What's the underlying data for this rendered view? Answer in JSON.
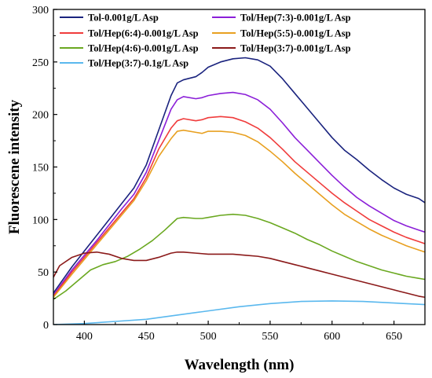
{
  "chart_data": {
    "type": "line",
    "xlabel": "Wavelength (nm)",
    "ylabel": "Fluorescene intensity",
    "xlim": [
      375,
      675
    ],
    "ylim": [
      0,
      300
    ],
    "xticks": [
      400,
      450,
      500,
      550,
      600,
      650
    ],
    "yticks": [
      0,
      50,
      100,
      150,
      200,
      250,
      300
    ],
    "grid": false,
    "legend_position": "top",
    "series": [
      {
        "name": "Tol-0.001g/L Asp",
        "color": "#1a237e",
        "points": [
          [
            375,
            30
          ],
          [
            390,
            55
          ],
          [
            400,
            70
          ],
          [
            410,
            85
          ],
          [
            420,
            100
          ],
          [
            430,
            115
          ],
          [
            440,
            130
          ],
          [
            450,
            152
          ],
          [
            460,
            185
          ],
          [
            470,
            218
          ],
          [
            475,
            230
          ],
          [
            480,
            233
          ],
          [
            490,
            236
          ],
          [
            495,
            240
          ],
          [
            500,
            245
          ],
          [
            510,
            250
          ],
          [
            520,
            253
          ],
          [
            530,
            254
          ],
          [
            540,
            252
          ],
          [
            550,
            246
          ],
          [
            560,
            234
          ],
          [
            570,
            220
          ],
          [
            580,
            206
          ],
          [
            590,
            192
          ],
          [
            600,
            178
          ],
          [
            610,
            166
          ],
          [
            620,
            157
          ],
          [
            630,
            147
          ],
          [
            640,
            138
          ],
          [
            650,
            130
          ],
          [
            660,
            124
          ],
          [
            670,
            120
          ],
          [
            675,
            116
          ]
        ]
      },
      {
        "name": "Tol/Hep(7:3)-0.001g/L Asp",
        "color": "#8b1fd8",
        "points": [
          [
            375,
            28
          ],
          [
            390,
            52
          ],
          [
            400,
            66
          ],
          [
            410,
            80
          ],
          [
            420,
            95
          ],
          [
            430,
            110
          ],
          [
            440,
            124
          ],
          [
            450,
            145
          ],
          [
            460,
            175
          ],
          [
            470,
            205
          ],
          [
            475,
            214
          ],
          [
            480,
            217
          ],
          [
            490,
            215
          ],
          [
            495,
            216
          ],
          [
            500,
            218
          ],
          [
            510,
            220
          ],
          [
            520,
            221
          ],
          [
            530,
            219
          ],
          [
            540,
            214
          ],
          [
            550,
            205
          ],
          [
            560,
            192
          ],
          [
            570,
            178
          ],
          [
            580,
            166
          ],
          [
            590,
            154
          ],
          [
            600,
            142
          ],
          [
            610,
            131
          ],
          [
            620,
            121
          ],
          [
            630,
            113
          ],
          [
            640,
            106
          ],
          [
            650,
            99
          ],
          [
            660,
            94
          ],
          [
            670,
            90
          ],
          [
            675,
            88
          ]
        ]
      },
      {
        "name": "Tol/Hep(6:4)-0.001g/L Asp",
        "color": "#f03c3c",
        "points": [
          [
            375,
            27
          ],
          [
            390,
            50
          ],
          [
            400,
            64
          ],
          [
            410,
            78
          ],
          [
            420,
            92
          ],
          [
            430,
            106
          ],
          [
            440,
            120
          ],
          [
            450,
            140
          ],
          [
            460,
            167
          ],
          [
            470,
            187
          ],
          [
            475,
            194
          ],
          [
            480,
            196
          ],
          [
            490,
            194
          ],
          [
            495,
            195
          ],
          [
            500,
            197
          ],
          [
            510,
            198
          ],
          [
            520,
            197
          ],
          [
            530,
            193
          ],
          [
            540,
            187
          ],
          [
            550,
            178
          ],
          [
            560,
            167
          ],
          [
            570,
            155
          ],
          [
            580,
            145
          ],
          [
            590,
            135
          ],
          [
            600,
            125
          ],
          [
            610,
            116
          ],
          [
            620,
            108
          ],
          [
            630,
            100
          ],
          [
            640,
            94
          ],
          [
            650,
            88
          ],
          [
            660,
            83
          ],
          [
            670,
            79
          ],
          [
            675,
            77
          ]
        ]
      },
      {
        "name": "Tol/Hep(5:5)-0.001g/L Asp",
        "color": "#e8a020",
        "points": [
          [
            375,
            26
          ],
          [
            390,
            48
          ],
          [
            400,
            62
          ],
          [
            410,
            76
          ],
          [
            420,
            90
          ],
          [
            430,
            104
          ],
          [
            440,
            118
          ],
          [
            450,
            137
          ],
          [
            460,
            160
          ],
          [
            470,
            177
          ],
          [
            475,
            184
          ],
          [
            480,
            185
          ],
          [
            490,
            183
          ],
          [
            495,
            182
          ],
          [
            500,
            184
          ],
          [
            510,
            184
          ],
          [
            520,
            183
          ],
          [
            530,
            180
          ],
          [
            540,
            174
          ],
          [
            550,
            165
          ],
          [
            560,
            155
          ],
          [
            570,
            144
          ],
          [
            580,
            134
          ],
          [
            590,
            124
          ],
          [
            600,
            114
          ],
          [
            610,
            105
          ],
          [
            620,
            98
          ],
          [
            630,
            91
          ],
          [
            640,
            85
          ],
          [
            650,
            80
          ],
          [
            660,
            75
          ],
          [
            670,
            71
          ],
          [
            675,
            69
          ]
        ]
      },
      {
        "name": "Tol/Hep(4:6)-0.001g/L Asp",
        "color": "#6aa820",
        "points": [
          [
            375,
            24
          ],
          [
            385,
            32
          ],
          [
            395,
            42
          ],
          [
            405,
            52
          ],
          [
            415,
            57
          ],
          [
            425,
            60
          ],
          [
            435,
            65
          ],
          [
            445,
            72
          ],
          [
            455,
            80
          ],
          [
            465,
            90
          ],
          [
            475,
            101
          ],
          [
            480,
            102
          ],
          [
            490,
            101
          ],
          [
            495,
            101
          ],
          [
            500,
            102
          ],
          [
            510,
            104
          ],
          [
            520,
            105
          ],
          [
            530,
            104
          ],
          [
            540,
            101
          ],
          [
            550,
            97
          ],
          [
            560,
            92
          ],
          [
            570,
            87
          ],
          [
            580,
            81
          ],
          [
            590,
            76
          ],
          [
            600,
            70
          ],
          [
            610,
            65
          ],
          [
            620,
            60
          ],
          [
            630,
            56
          ],
          [
            640,
            52
          ],
          [
            650,
            49
          ],
          [
            660,
            46
          ],
          [
            670,
            44
          ],
          [
            675,
            43
          ]
        ]
      },
      {
        "name": "Tol/Hep(3:7)-0.001g/L Asp",
        "color": "#8b1a1a",
        "points": [
          [
            375,
            45
          ],
          [
            380,
            56
          ],
          [
            390,
            64
          ],
          [
            400,
            68
          ],
          [
            410,
            69
          ],
          [
            420,
            67
          ],
          [
            430,
            63
          ],
          [
            440,
            61
          ],
          [
            450,
            61
          ],
          [
            460,
            64
          ],
          [
            470,
            68
          ],
          [
            475,
            69
          ],
          [
            480,
            69
          ],
          [
            490,
            68
          ],
          [
            500,
            67
          ],
          [
            510,
            67
          ],
          [
            520,
            67
          ],
          [
            530,
            66
          ],
          [
            540,
            65
          ],
          [
            550,
            63
          ],
          [
            560,
            60
          ],
          [
            570,
            57
          ],
          [
            580,
            54
          ],
          [
            590,
            51
          ],
          [
            600,
            48
          ],
          [
            610,
            45
          ],
          [
            620,
            42
          ],
          [
            630,
            39
          ],
          [
            640,
            36
          ],
          [
            650,
            33
          ],
          [
            660,
            30
          ],
          [
            670,
            27
          ],
          [
            675,
            26
          ]
        ]
      },
      {
        "name": "Tol/Hep(3:7)-0.1g/L Asp",
        "color": "#5ab8ee",
        "points": [
          [
            375,
            0
          ],
          [
            400,
            1
          ],
          [
            425,
            3
          ],
          [
            450,
            5
          ],
          [
            475,
            9
          ],
          [
            500,
            13
          ],
          [
            525,
            17
          ],
          [
            550,
            20
          ],
          [
            575,
            22
          ],
          [
            600,
            22.5
          ],
          [
            625,
            22
          ],
          [
            650,
            20.5
          ],
          [
            675,
            19
          ]
        ]
      }
    ]
  }
}
